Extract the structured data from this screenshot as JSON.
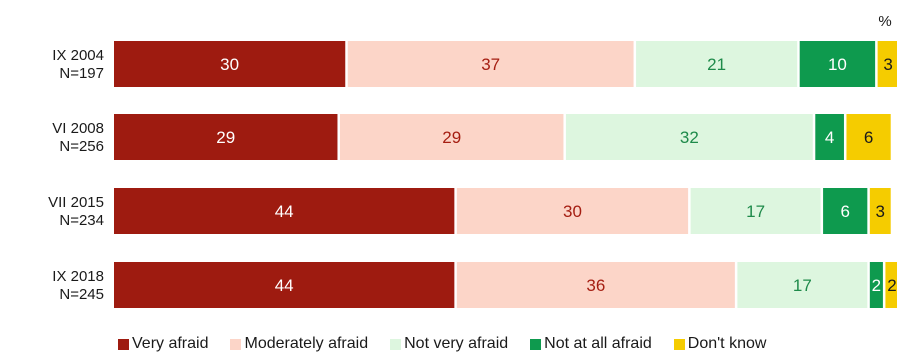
{
  "chart_data": {
    "type": "bar",
    "orientation": "horizontal",
    "stacked": true,
    "unit": "%",
    "categories": [
      [
        "IX 2004",
        "N=197"
      ],
      [
        "VI 2008",
        "N=256"
      ],
      [
        "VII 2015",
        "N=234"
      ],
      [
        "IX 2018",
        "N=245"
      ]
    ],
    "series": [
      {
        "name": "Very afraid",
        "color": "#9E1B10",
        "label_color": "#ffffff",
        "values": [
          30,
          29,
          44,
          44
        ]
      },
      {
        "name": "Moderately afraid",
        "color": "#FCD5C8",
        "label_color": "#A51E12",
        "values": [
          37,
          29,
          30,
          36
        ]
      },
      {
        "name": "Not very afraid",
        "color": "#DDF6DF",
        "label_color": "#1E8A4A",
        "values": [
          21,
          32,
          17,
          17
        ]
      },
      {
        "name": "Not at all afraid",
        "color": "#0E9A4E",
        "label_color": "#ffffff",
        "values": [
          10,
          4,
          6,
          2
        ]
      },
      {
        "name": "Don't know",
        "color": "#F5CC00",
        "label_color": "#1a1a1a",
        "values": [
          3,
          6,
          3,
          2
        ]
      }
    ],
    "xlim": [
      0,
      101
    ],
    "legend_position": "bottom",
    "grid": false
  }
}
